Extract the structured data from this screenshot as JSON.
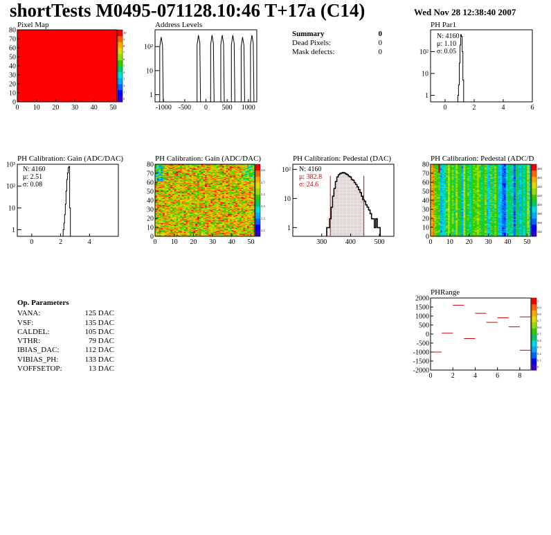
{
  "title": "shortTests M0495-071128.10:46 T+17a (C14)",
  "date": "Wed Nov 28 12:38:40 2007",
  "summary": {
    "title": "Summary",
    "value": "0",
    "rows": [
      {
        "label": "Dead Pixels:",
        "value": "0"
      },
      {
        "label": "Mask defects:",
        "value": "0"
      }
    ]
  },
  "op_parameters": {
    "title": "Op. Parameters",
    "rows": [
      {
        "name": "VANA:",
        "value": "125 DAC"
      },
      {
        "name": "VSF:",
        "value": "135 DAC"
      },
      {
        "name": "CALDEL:",
        "value": "105 DAC"
      },
      {
        "name": "VTHR:",
        "value": "79 DAC"
      },
      {
        "name": "IBIAS_DAC:",
        "value": "112 DAC"
      },
      {
        "name": "VIBIAS_PH:",
        "value": "133 DAC"
      },
      {
        "name": "VOFFSETOP:",
        "value": "13 DAC"
      }
    ]
  },
  "chart_data": [
    {
      "type": "heatmap",
      "title": "Pixel Map",
      "xlim": [
        0,
        52
      ],
      "ylim": [
        0,
        80
      ],
      "x_ticks": [
        0,
        10,
        20,
        30,
        40,
        50
      ],
      "y_ticks": [
        0,
        10,
        20,
        30,
        40,
        50,
        60,
        70,
        80
      ],
      "uniform_value": 10,
      "colorbar_ticks": [
        0,
        1,
        2,
        3,
        4,
        5,
        6,
        7,
        8,
        9,
        10
      ]
    },
    {
      "type": "bar",
      "title": "Address Levels",
      "log_y": true,
      "xlim": [
        -1200,
        1200
      ],
      "ylim": [
        0.5,
        500
      ],
      "x_ticks": [
        "-1000",
        "-500",
        "0",
        "500",
        "1000"
      ],
      "y_ticks": [
        "1",
        "10",
        "10²"
      ],
      "peaks": [
        {
          "x": -1040,
          "y": 250
        },
        {
          "x": -160,
          "y": 300
        },
        {
          "x": 160,
          "y": 300
        },
        {
          "x": 400,
          "y": 300
        },
        {
          "x": 650,
          "y": 300
        },
        {
          "x": 880,
          "y": 250
        },
        {
          "x": 1100,
          "y": 300
        }
      ]
    },
    {
      "type": "bar",
      "title": "PH Par1",
      "log_y": true,
      "xlim": [
        -1,
        6
      ],
      "ylim": [
        0.5,
        1000
      ],
      "x_ticks": [
        "0",
        "2",
        "4",
        "6"
      ],
      "y_ticks": [
        "1",
        "10",
        "10²"
      ],
      "stats": [
        "N: 4160",
        "μ: 1.10",
        "σ: 0.05"
      ],
      "x": [
        0.9,
        0.95,
        1.0,
        1.05,
        1.1,
        1.15,
        1.2,
        1.25
      ],
      "values": [
        1,
        3,
        30,
        200,
        600,
        500,
        100,
        5
      ]
    },
    {
      "type": "bar",
      "title": "PH Calibration: Gain (ADC/DAC)",
      "log_y": true,
      "xlim": [
        -1,
        6
      ],
      "ylim": [
        0.5,
        1000
      ],
      "x_ticks": [
        "0",
        "2",
        "4"
      ],
      "y_ticks": [
        "1",
        "10",
        "10²",
        "10³"
      ],
      "stats": [
        "N: 4160",
        "μ: 2.51",
        "σ: 0.08"
      ],
      "x": [
        2.2,
        2.25,
        2.3,
        2.35,
        2.4,
        2.45,
        2.5,
        2.55,
        2.6,
        2.65
      ],
      "values": [
        1,
        2,
        5,
        15,
        60,
        200,
        400,
        700,
        800,
        10
      ]
    },
    {
      "type": "heatmap",
      "title": "PH Calibration: Gain (ADC/DAC)",
      "xlim": [
        0,
        52
      ],
      "ylim": [
        0,
        80
      ],
      "x_ticks": [
        0,
        10,
        20,
        30,
        40,
        50
      ],
      "y_ticks": [
        0,
        10,
        20,
        30,
        40,
        50,
        60,
        70,
        80
      ],
      "zlim": [
        2.05,
        2.65
      ],
      "colorbar_ticks": [
        "2.1",
        "2.2",
        "2.3",
        "2.4",
        "2.5",
        "2.6"
      ]
    },
    {
      "type": "bar",
      "title": "PH Calibration: Pedestal (DAC)",
      "log_y": true,
      "xlim": [
        200,
        550
      ],
      "ylim": [
        0.5,
        150
      ],
      "x_ticks": [
        "300",
        "400",
        "500"
      ],
      "y_ticks": [
        "1",
        "10",
        "10²"
      ],
      "stats": [
        "N: 4160"
      ],
      "stats_red": [
        "μ: 382.8",
        "σ: 24.6"
      ],
      "cut_lines": [
        330,
        446
      ],
      "x": [
        320,
        325,
        330,
        335,
        340,
        345,
        350,
        355,
        360,
        365,
        370,
        375,
        380,
        385,
        390,
        395,
        400,
        405,
        410,
        415,
        420,
        425,
        430,
        435,
        440,
        445,
        450,
        455,
        460,
        465,
        470,
        475,
        480,
        485,
        490,
        495,
        500
      ],
      "values": [
        1,
        1,
        2,
        5,
        12,
        22,
        38,
        55,
        65,
        72,
        75,
        78,
        75,
        70,
        65,
        58,
        55,
        45,
        42,
        35,
        30,
        25,
        20,
        16,
        12,
        9,
        8,
        6,
        5,
        4,
        3,
        2,
        2,
        1,
        2,
        1,
        1
      ]
    },
    {
      "type": "heatmap",
      "title": "PH Calibration: Pedestal (ADC/DAC)",
      "xlim": [
        0,
        52
      ],
      "ylim": [
        0,
        80
      ],
      "x_ticks": [
        0,
        10,
        20,
        30,
        40,
        50
      ],
      "y_ticks": [
        0,
        10,
        20,
        30,
        40,
        50,
        60,
        70,
        80
      ],
      "zlim": [
        320,
        490
      ],
      "colorbar_ticks": [
        "340",
        "360",
        "380",
        "400",
        "420",
        "440",
        "460",
        "480"
      ]
    },
    {
      "type": "scatter",
      "title": "PHRange",
      "xlim": [
        0,
        9
      ],
      "ylim": [
        -2000,
        2000
      ],
      "x_ticks": [
        "0",
        "2",
        "4",
        "6",
        "8"
      ],
      "y_ticks": [
        "-2000",
        "-1500",
        "-1000",
        "-500",
        "0",
        "500",
        "1000",
        "1500",
        "2000"
      ],
      "colorbar_ticks": [
        "0",
        "0.1",
        "0.2",
        "0.3",
        "0.4",
        "0.5",
        "0.6",
        "0.7",
        "0.8",
        "0.9",
        "1"
      ],
      "x": [
        0.5,
        1.5,
        2.5,
        3.5,
        4.5,
        5.5,
        6.5,
        7.5,
        8.5
      ],
      "values": [
        -1000,
        50,
        1600,
        -250,
        1150,
        650,
        900,
        400,
        -900
      ],
      "extra_segment": {
        "x": 8.5,
        "y": 950
      }
    }
  ]
}
